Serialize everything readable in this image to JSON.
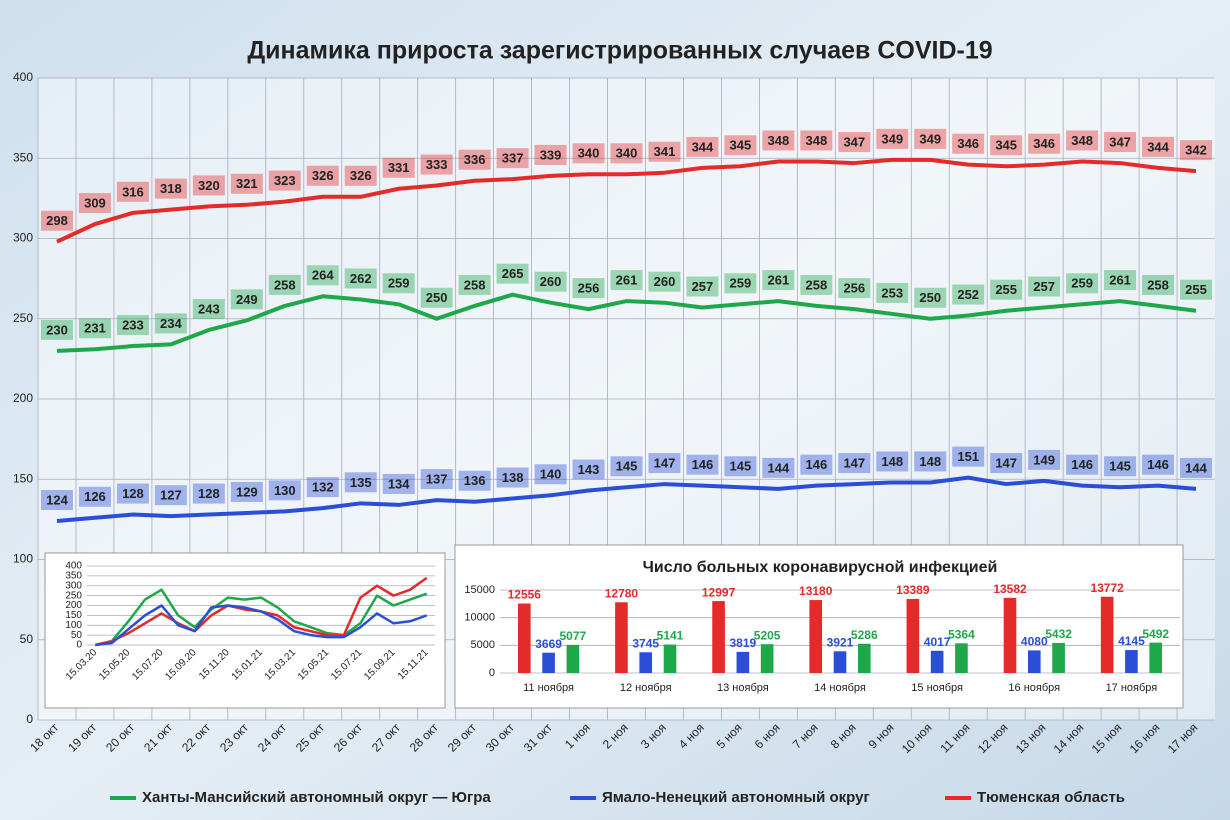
{
  "chart_data": [
    {
      "type": "line",
      "title": "Динамика прироста зарегистрированных случаев COVID-19",
      "categories": [
        "18 окт",
        "19 окт",
        "20 окт",
        "21 окт",
        "22 окт",
        "23 окт",
        "24 окт",
        "25 окт",
        "26 окт",
        "27 окт",
        "28 окт",
        "29 окт",
        "30 окт",
        "31 окт",
        "1 ноя",
        "2 ноя",
        "3 ноя",
        "4 ноя",
        "5 ноя",
        "6 ноя",
        "7 ноя",
        "8 ноя",
        "9 ноя",
        "10 ноя",
        "11 ноя",
        "12 ноя",
        "13 ноя",
        "14 ноя",
        "15 ноя",
        "16 ноя",
        "17 ноя"
      ],
      "series": [
        {
          "name": "Ханты-Мансийский автономный округ — Югра",
          "color": "#1fa84a",
          "values": [
            230,
            231,
            233,
            234,
            243,
            249,
            258,
            264,
            262,
            259,
            250,
            258,
            265,
            260,
            256,
            261,
            260,
            257,
            259,
            261,
            258,
            256,
            253,
            250,
            252,
            255,
            257,
            259,
            261,
            258,
            255
          ]
        },
        {
          "name": "Ямало-Ненецкий автономный округ",
          "color": "#2a4fd6",
          "values": [
            124,
            126,
            128,
            127,
            128,
            129,
            130,
            132,
            135,
            134,
            137,
            136,
            138,
            140,
            143,
            145,
            147,
            146,
            145,
            144,
            146,
            147,
            148,
            148,
            151,
            147,
            149,
            146,
            145,
            146,
            144
          ]
        },
        {
          "name": "Тюменская область",
          "color": "#e52a2a",
          "values": [
            298,
            309,
            316,
            318,
            320,
            321,
            323,
            326,
            326,
            331,
            333,
            336,
            337,
            339,
            340,
            340,
            341,
            344,
            345,
            348,
            348,
            347,
            349,
            349,
            346,
            345,
            346,
            348,
            347,
            344,
            342
          ]
        }
      ],
      "ylim": [
        0,
        400
      ],
      "yticks": [
        0,
        50,
        100,
        150,
        200,
        250,
        300,
        350,
        400
      ],
      "grid": true,
      "data_labels": true,
      "legend": "bottom"
    },
    {
      "type": "line",
      "categories": [
        "15.03.20",
        null,
        "15.05.20",
        null,
        "15.07.20",
        null,
        "15.09.20",
        null,
        "15.11.20",
        null,
        "15.01.21",
        null,
        "15.03.21",
        null,
        "15.05.21",
        null,
        "15.07.21",
        null,
        "15.09.21",
        null,
        "15.11.21"
      ],
      "series": [
        {
          "color": "#1fa84a",
          "values": [
            0,
            20,
            120,
            230,
            280,
            150,
            90,
            180,
            240,
            230,
            240,
            190,
            120,
            90,
            60,
            50,
            110,
            250,
            200,
            230,
            260
          ]
        },
        {
          "color": "#e52a2a",
          "values": [
            0,
            20,
            60,
            110,
            160,
            110,
            70,
            150,
            200,
            180,
            170,
            150,
            90,
            70,
            50,
            50,
            240,
            300,
            250,
            280,
            340
          ]
        },
        {
          "color": "#2a4fd6",
          "values": [
            0,
            10,
            80,
            150,
            200,
            100,
            70,
            190,
            200,
            190,
            170,
            130,
            70,
            50,
            40,
            40,
            90,
            160,
            110,
            120,
            150
          ]
        }
      ],
      "ylim": [
        0,
        400
      ],
      "yticks": [
        0,
        50,
        100,
        150,
        200,
        250,
        300,
        350,
        400
      ],
      "grid": true
    },
    {
      "type": "bar",
      "title": "Число больных  коронавирусной  инфекцией",
      "categories": [
        "11 ноября",
        "12 ноября",
        "13 ноября",
        "14 ноября",
        "15 ноября",
        "16 ноября",
        "17 ноября"
      ],
      "series": [
        {
          "color": "#e52a2a",
          "values": [
            12556,
            12780,
            12997,
            13180,
            13389,
            13582,
            13772
          ]
        },
        {
          "color": "#2a4fd6",
          "values": [
            3669,
            3745,
            3819,
            3921,
            4017,
            4080,
            4145
          ]
        },
        {
          "color": "#1fa84a",
          "values": [
            5077,
            5141,
            5205,
            5286,
            5364,
            5432,
            5492
          ]
        }
      ],
      "ylim": [
        0,
        15000
      ],
      "yticks": [
        0,
        5000,
        10000,
        15000
      ],
      "grid": true
    }
  ]
}
